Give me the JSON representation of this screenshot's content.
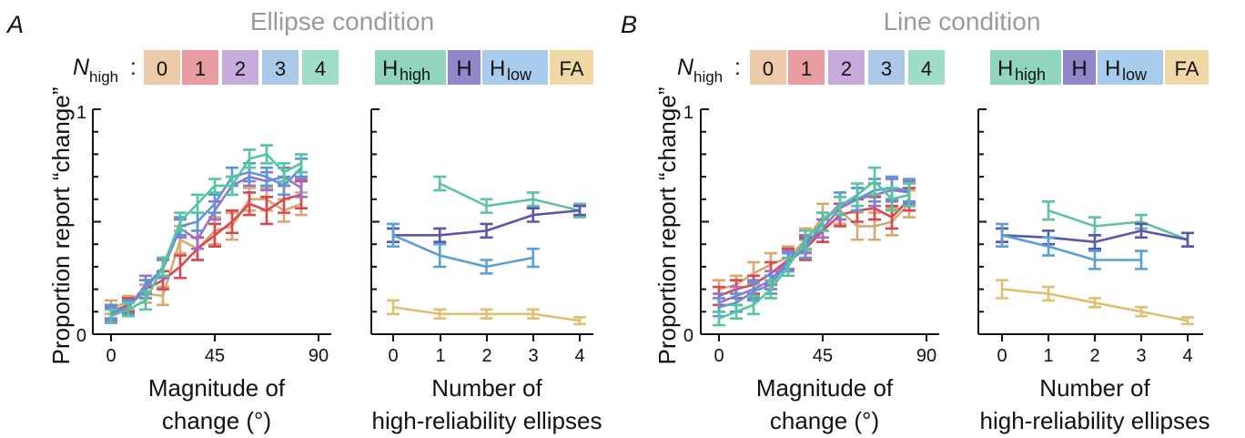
{
  "colors": {
    "n0": "#e6b88e",
    "n1": "#e07b80",
    "n2": "#b48fd0",
    "n3": "#90b5e2",
    "n4": "#7fd2b6",
    "line_n0": "#d9a870",
    "line_n1": "#d8484e",
    "line_n2": "#9a6fcf",
    "line_n3": "#5b96dc",
    "line_n4": "#54c59d",
    "Hhigh": "#5ec39e",
    "H": "#5b55b0",
    "Hlow": "#5a9fd6",
    "FA": "#dfbf72",
    "Hhigh_box": "#8fd6bc",
    "H_box": "#8f86cc",
    "Hlow_box": "#a8cdec",
    "FA_box": "#eed9a6",
    "axis": "#111111",
    "title_gray": "#9a9a9a"
  },
  "panels": [
    {
      "letter": "A",
      "title": "Ellipse condition",
      "nhigh_label": "N",
      "nhigh_sub": "high",
      "nhigh_colon": ":",
      "nhigh_values": [
        "0",
        "1",
        "2",
        "3",
        "4"
      ],
      "legend2": [
        {
          "key": "Hhigh",
          "main": "H",
          "sub": "high"
        },
        {
          "key": "H",
          "main": "H",
          "sub": ""
        },
        {
          "key": "Hlow",
          "main": "H",
          "sub": "low"
        },
        {
          "key": "FA",
          "main": "FA",
          "sub": ""
        }
      ],
      "ylabel": "Proportion report “change”",
      "ytick_top": "1",
      "ytick_bottom": "0",
      "left_xticks": [
        "0",
        "45",
        "90"
      ],
      "left_xlabel": [
        "Magnitude of",
        "change (°)"
      ],
      "right_xticks": [
        "0",
        "1",
        "2",
        "3",
        "4"
      ],
      "right_xlabel": [
        "Number of",
        "high-reliability ellipses"
      ]
    },
    {
      "letter": "B",
      "title": "Line condition",
      "nhigh_label": "N",
      "nhigh_sub": "high",
      "nhigh_colon": ":",
      "nhigh_values": [
        "0",
        "1",
        "2",
        "3",
        "4"
      ],
      "legend2": [
        {
          "key": "Hhigh",
          "main": "H",
          "sub": "high"
        },
        {
          "key": "H",
          "main": "H",
          "sub": ""
        },
        {
          "key": "Hlow",
          "main": "H",
          "sub": "low"
        },
        {
          "key": "FA",
          "main": "FA",
          "sub": ""
        }
      ],
      "ylabel": "Proportion report “change”",
      "ytick_top": "1",
      "ytick_bottom": "0",
      "left_xticks": [
        "0",
        "45",
        "90"
      ],
      "left_xlabel": [
        "Magnitude of",
        "change (°)"
      ],
      "right_xticks": [
        "0",
        "1",
        "2",
        "3",
        "4"
      ],
      "right_xlabel": [
        "Number of",
        "high-reliability ellipses"
      ]
    }
  ],
  "chart_data": [
    {
      "type": "line",
      "panel": "A-left",
      "xlim": [
        0,
        90
      ],
      "ylim": [
        0,
        1
      ],
      "x": [
        0,
        7.5,
        15,
        22.5,
        30,
        37.5,
        45,
        52.5,
        60,
        67.5,
        75,
        82.5
      ],
      "series": [
        {
          "name": "0",
          "values": [
            0.12,
            0.14,
            0.18,
            0.17,
            0.42,
            0.38,
            0.46,
            0.48,
            0.6,
            0.6,
            0.55,
            0.58
          ],
          "err": [
            0.03,
            0.03,
            0.04,
            0.04,
            0.06,
            0.05,
            0.06,
            0.06,
            0.05,
            0.05,
            0.05,
            0.05
          ]
        },
        {
          "name": "1",
          "values": [
            0.1,
            0.13,
            0.2,
            0.24,
            0.3,
            0.38,
            0.44,
            0.5,
            0.58,
            0.55,
            0.6,
            0.62
          ],
          "err": [
            0.03,
            0.03,
            0.04,
            0.04,
            0.05,
            0.05,
            0.05,
            0.05,
            0.05,
            0.06,
            0.06,
            0.06
          ]
        },
        {
          "name": "2",
          "values": [
            0.09,
            0.12,
            0.22,
            0.29,
            0.47,
            0.42,
            0.55,
            0.66,
            0.7,
            0.68,
            0.7,
            0.65
          ],
          "err": [
            0.03,
            0.03,
            0.04,
            0.04,
            0.04,
            0.04,
            0.04,
            0.04,
            0.04,
            0.04,
            0.04,
            0.04
          ]
        },
        {
          "name": "3",
          "values": [
            0.1,
            0.12,
            0.2,
            0.3,
            0.48,
            0.5,
            0.58,
            0.7,
            0.72,
            0.7,
            0.66,
            0.74
          ],
          "err": [
            0.03,
            0.03,
            0.04,
            0.04,
            0.04,
            0.04,
            0.04,
            0.04,
            0.04,
            0.04,
            0.04,
            0.04
          ]
        },
        {
          "name": "4",
          "values": [
            0.08,
            0.11,
            0.15,
            0.3,
            0.5,
            0.58,
            0.66,
            0.66,
            0.78,
            0.8,
            0.72,
            0.76
          ],
          "err": [
            0.03,
            0.03,
            0.04,
            0.04,
            0.04,
            0.04,
            0.03,
            0.04,
            0.04,
            0.04,
            0.04,
            0.04
          ]
        }
      ]
    },
    {
      "type": "line",
      "panel": "A-right",
      "xlim": [
        0,
        4
      ],
      "ylim": [
        0,
        1
      ],
      "x": [
        0,
        1,
        2,
        3,
        4
      ],
      "series": [
        {
          "name": "Hhigh",
          "x": [
            1,
            2,
            3,
            4
          ],
          "values": [
            0.67,
            0.57,
            0.6,
            0.55
          ],
          "err": [
            0.03,
            0.03,
            0.03,
            0.03
          ]
        },
        {
          "name": "H",
          "x": [
            0,
            1,
            2,
            3,
            4
          ],
          "values": [
            0.44,
            0.44,
            0.46,
            0.53,
            0.55
          ],
          "err": [
            0.03,
            0.03,
            0.03,
            0.03,
            0.02
          ]
        },
        {
          "name": "Hlow",
          "x": [
            0,
            1,
            2,
            3
          ],
          "values": [
            0.44,
            0.35,
            0.3,
            0.34
          ],
          "err": [
            0.05,
            0.05,
            0.03,
            0.04
          ]
        },
        {
          "name": "FA",
          "x": [
            0,
            1,
            2,
            3,
            4
          ],
          "values": [
            0.12,
            0.09,
            0.09,
            0.09,
            0.06
          ],
          "err": [
            0.03,
            0.02,
            0.02,
            0.02,
            0.015
          ]
        }
      ]
    },
    {
      "type": "line",
      "panel": "B-left",
      "xlim": [
        0,
        90
      ],
      "ylim": [
        0,
        1
      ],
      "x": [
        0,
        7.5,
        15,
        22.5,
        30,
        37.5,
        45,
        52.5,
        60,
        67.5,
        75,
        82.5
      ],
      "series": [
        {
          "name": "0",
          "values": [
            0.2,
            0.22,
            0.27,
            0.31,
            0.34,
            0.42,
            0.52,
            0.55,
            0.48,
            0.48,
            0.5,
            0.58
          ],
          "err": [
            0.04,
            0.04,
            0.05,
            0.05,
            0.05,
            0.05,
            0.06,
            0.06,
            0.06,
            0.06,
            0.06,
            0.06
          ]
        },
        {
          "name": "1",
          "values": [
            0.17,
            0.2,
            0.22,
            0.27,
            0.33,
            0.38,
            0.46,
            0.53,
            0.55,
            0.56,
            0.52,
            0.6
          ],
          "err": [
            0.04,
            0.04,
            0.04,
            0.05,
            0.05,
            0.05,
            0.05,
            0.05,
            0.05,
            0.05,
            0.05,
            0.05
          ]
        },
        {
          "name": "2",
          "values": [
            0.14,
            0.17,
            0.2,
            0.24,
            0.33,
            0.4,
            0.47,
            0.56,
            0.6,
            0.62,
            0.64,
            0.63
          ],
          "err": [
            0.04,
            0.04,
            0.04,
            0.04,
            0.04,
            0.04,
            0.04,
            0.05,
            0.05,
            0.05,
            0.05,
            0.05
          ]
        },
        {
          "name": "3",
          "values": [
            0.12,
            0.14,
            0.19,
            0.22,
            0.32,
            0.38,
            0.5,
            0.58,
            0.6,
            0.64,
            0.65,
            0.64
          ],
          "err": [
            0.04,
            0.04,
            0.04,
            0.04,
            0.04,
            0.04,
            0.04,
            0.05,
            0.05,
            0.05,
            0.05,
            0.05
          ]
        },
        {
          "name": "4",
          "values": [
            0.07,
            0.1,
            0.13,
            0.2,
            0.3,
            0.42,
            0.5,
            0.57,
            0.62,
            0.68,
            0.6,
            0.62
          ],
          "err": [
            0.03,
            0.03,
            0.04,
            0.04,
            0.04,
            0.04,
            0.04,
            0.04,
            0.05,
            0.06,
            0.05,
            0.05
          ]
        }
      ]
    },
    {
      "type": "line",
      "panel": "B-right",
      "xlim": [
        0,
        4
      ],
      "ylim": [
        0,
        1
      ],
      "x": [
        0,
        1,
        2,
        3,
        4
      ],
      "series": [
        {
          "name": "Hhigh",
          "x": [
            1,
            2,
            3,
            4
          ],
          "values": [
            0.55,
            0.48,
            0.5,
            0.42
          ],
          "err": [
            0.04,
            0.04,
            0.03,
            0.03
          ]
        },
        {
          "name": "H",
          "x": [
            0,
            1,
            2,
            3,
            4
          ],
          "values": [
            0.44,
            0.43,
            0.41,
            0.46,
            0.42
          ],
          "err": [
            0.03,
            0.03,
            0.03,
            0.03,
            0.03
          ]
        },
        {
          "name": "Hlow",
          "x": [
            0,
            1,
            2,
            3
          ],
          "values": [
            0.44,
            0.39,
            0.33,
            0.33
          ],
          "err": [
            0.05,
            0.04,
            0.04,
            0.04
          ]
        },
        {
          "name": "FA",
          "x": [
            0,
            1,
            2,
            3,
            4
          ],
          "values": [
            0.2,
            0.18,
            0.14,
            0.1,
            0.06
          ],
          "err": [
            0.04,
            0.03,
            0.02,
            0.02,
            0.015
          ]
        }
      ]
    }
  ]
}
